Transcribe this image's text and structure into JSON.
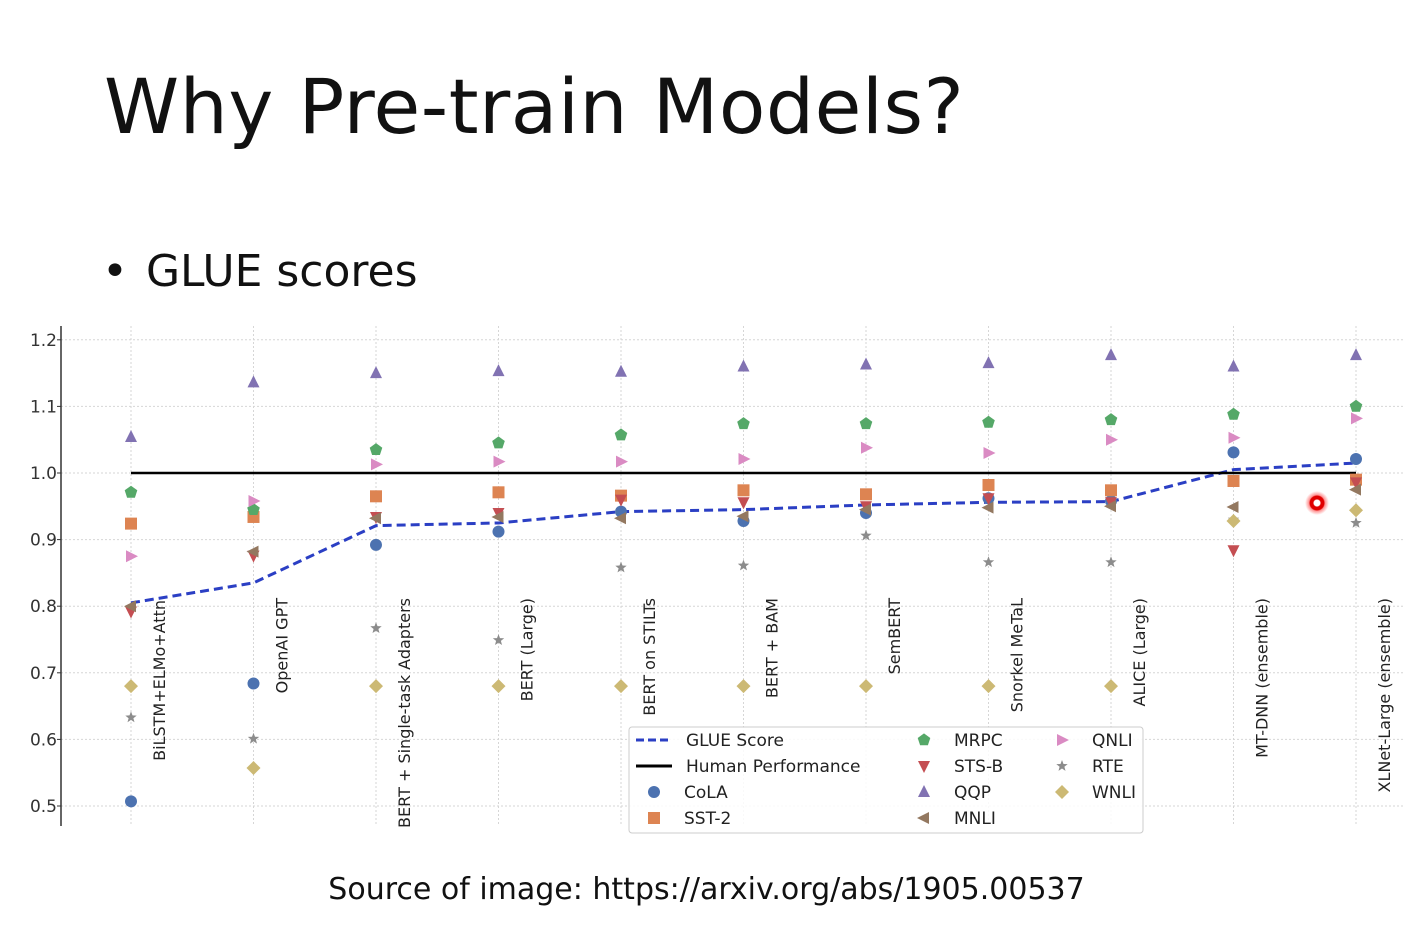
{
  "slide": {
    "title": "Why Pre-train Models?",
    "bullet": "GLUE scores",
    "source": "Source of image: https://arxiv.org/abs/1905.00537"
  },
  "chart_data": {
    "type": "scatter",
    "title": "",
    "xlabel": "",
    "ylabel": "",
    "ylim": [
      0.5,
      1.2
    ],
    "yticks": [
      0.5,
      0.6,
      0.7,
      0.8,
      0.9,
      1.0,
      1.1,
      1.2
    ],
    "ytick_labels": [
      "0.5",
      "0.6",
      "0.7",
      "0.8",
      "0.9",
      "1.0",
      "1.1",
      "1.2"
    ],
    "grid": true,
    "legend_position": "bottom-right",
    "categories": [
      "BiLSTM+ELMo+Attn",
      "OpenAI GPT",
      "BERT + Single-task Adapters",
      "BERT (Large)",
      "BERT on STILTs",
      "BERT + BAM",
      "SemBERT",
      "Snorkel MeTaL",
      "ALICE (Large)",
      "MT-DNN (ensemble)",
      "XLNet-Large (ensemble)"
    ],
    "lines": [
      {
        "name": "GLUE Score",
        "style": "dashed",
        "color": "#2b3fc4",
        "values": [
          0.805,
          0.835,
          0.921,
          0.925,
          0.942,
          0.945,
          0.952,
          0.956,
          0.957,
          1.005,
          1.015
        ]
      },
      {
        "name": "Human Performance",
        "style": "solid",
        "color": "#000000",
        "values": [
          1.0,
          1.0,
          1.0,
          1.0,
          1.0,
          1.0,
          1.0,
          1.0,
          1.0,
          1.0,
          1.0
        ]
      }
    ],
    "series": [
      {
        "name": "CoLA",
        "marker": "circle",
        "color": "#4c72b0",
        "values": [
          0.507,
          0.684,
          0.892,
          0.912,
          0.942,
          0.928,
          0.94,
          0.962,
          0.958,
          1.031,
          1.021
        ]
      },
      {
        "name": "SST-2",
        "marker": "square",
        "color": "#dd8452",
        "values": [
          0.924,
          0.934,
          0.965,
          0.971,
          0.966,
          0.974,
          0.968,
          0.982,
          0.974,
          0.988,
          0.99
        ]
      },
      {
        "name": "MRPC",
        "marker": "pentagon",
        "color": "#55a868",
        "values": [
          0.971,
          0.945,
          1.035,
          1.045,
          1.057,
          1.074,
          1.074,
          1.076,
          1.08,
          1.088,
          1.1
        ]
      },
      {
        "name": "STS-B",
        "marker": "triangle-down",
        "color": "#c44e52",
        "values": [
          0.792,
          0.876,
          0.934,
          0.94,
          0.96,
          0.956,
          0.95,
          0.962,
          0.956,
          0.884,
          0.986
        ]
      },
      {
        "name": "QQP",
        "marker": "triangle-up",
        "color": "#8172b2",
        "values": [
          1.054,
          1.136,
          1.15,
          1.153,
          1.152,
          1.16,
          1.163,
          1.165,
          1.177,
          1.16,
          1.177
        ]
      },
      {
        "name": "MNLI",
        "marker": "triangle-left",
        "color": "#937860",
        "values": [
          0.8,
          0.882,
          0.932,
          0.934,
          0.932,
          0.935,
          0.945,
          0.948,
          0.95,
          0.949,
          0.975
        ]
      },
      {
        "name": "QNLI",
        "marker": "triangle-right",
        "color": "#da8bc3",
        "values": [
          0.875,
          0.958,
          1.013,
          1.017,
          1.017,
          1.021,
          1.038,
          1.03,
          1.05,
          1.053,
          1.082
        ]
      },
      {
        "name": "RTE",
        "marker": "star",
        "color": "#8c8c8c",
        "values": [
          0.633,
          0.601,
          0.767,
          0.749,
          0.858,
          0.861,
          0.906,
          0.866,
          0.866,
          0.93,
          0.925
        ]
      },
      {
        "name": "WNLI",
        "marker": "diamond",
        "color": "#ccb974",
        "values": [
          0.68,
          0.557,
          0.68,
          0.68,
          0.68,
          0.68,
          0.68,
          0.68,
          0.68,
          0.928,
          0.944
        ]
      }
    ]
  }
}
